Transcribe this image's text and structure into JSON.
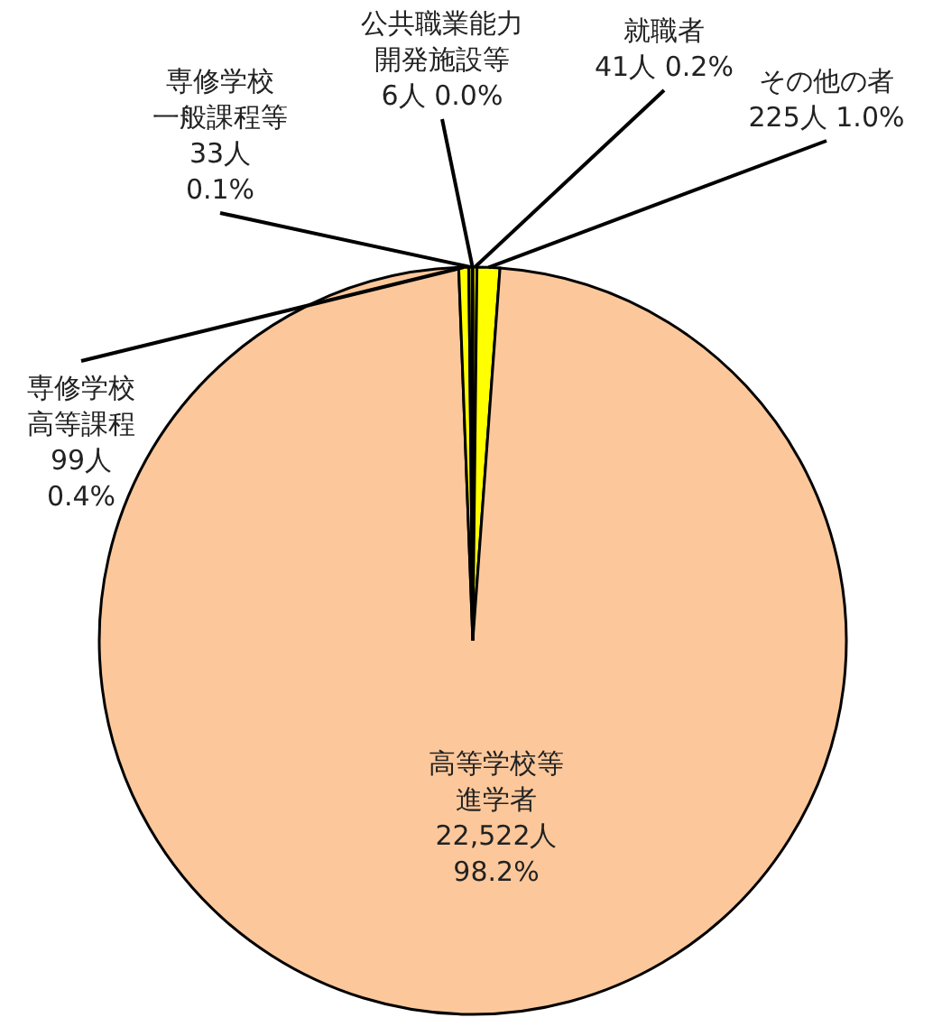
{
  "chart_data": {
    "type": "pie",
    "categories": [
      "就職者",
      "その他の者",
      "高等学校等進学者",
      "専修学校高等課程",
      "専修学校一般課程等",
      "公共職業能力開発施設等"
    ],
    "values": [
      41,
      225,
      22522,
      99,
      33,
      6
    ],
    "value_labels": [
      "41人  0.2%",
      "225人  1.0%",
      "22,522人\n98.2%",
      "99人\n0.4%",
      "33人\n0.1%",
      "6人  0.0%"
    ],
    "colors": [
      "#ffff00",
      "#ffff00",
      "#fcc89b",
      "#ffff00",
      "#ffff00",
      "#ffff00"
    ]
  }
}
